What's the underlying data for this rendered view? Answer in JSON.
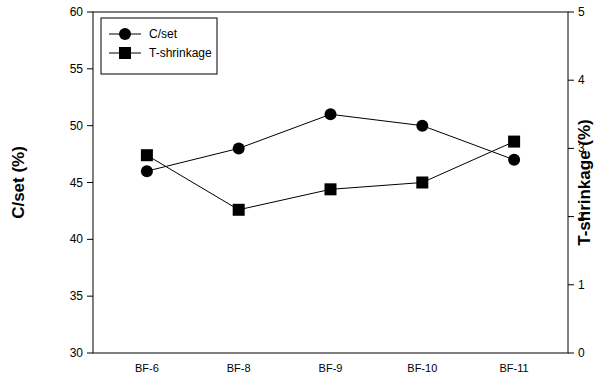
{
  "chart_data": {
    "type": "line",
    "categories": [
      "BF-6",
      "BF-8",
      "BF-9",
      "BF-10",
      "BF-11"
    ],
    "series": [
      {
        "name": "C/set",
        "color": "#000000",
        "marker": "circle",
        "line_style": "solid",
        "values": [
          46,
          48,
          51,
          50,
          47
        ]
      },
      {
        "name": "T-shrinkage",
        "color": "#000000",
        "marker": "square",
        "line_style": "solid",
        "axis": "y2",
        "values": [
          2.9,
          2.1,
          2.4,
          2.5,
          3.1
        ]
      }
    ],
    "ylabel": "C/set (%)",
    "y2label": "T-shrinkage (%)",
    "ylim": [
      30,
      60
    ],
    "yticks": [
      30,
      35,
      40,
      45,
      50,
      55,
      60
    ],
    "y2lim": [
      0,
      5
    ],
    "y2ticks": [
      0,
      1,
      2,
      3,
      4,
      5
    ],
    "legend": "upper left"
  }
}
